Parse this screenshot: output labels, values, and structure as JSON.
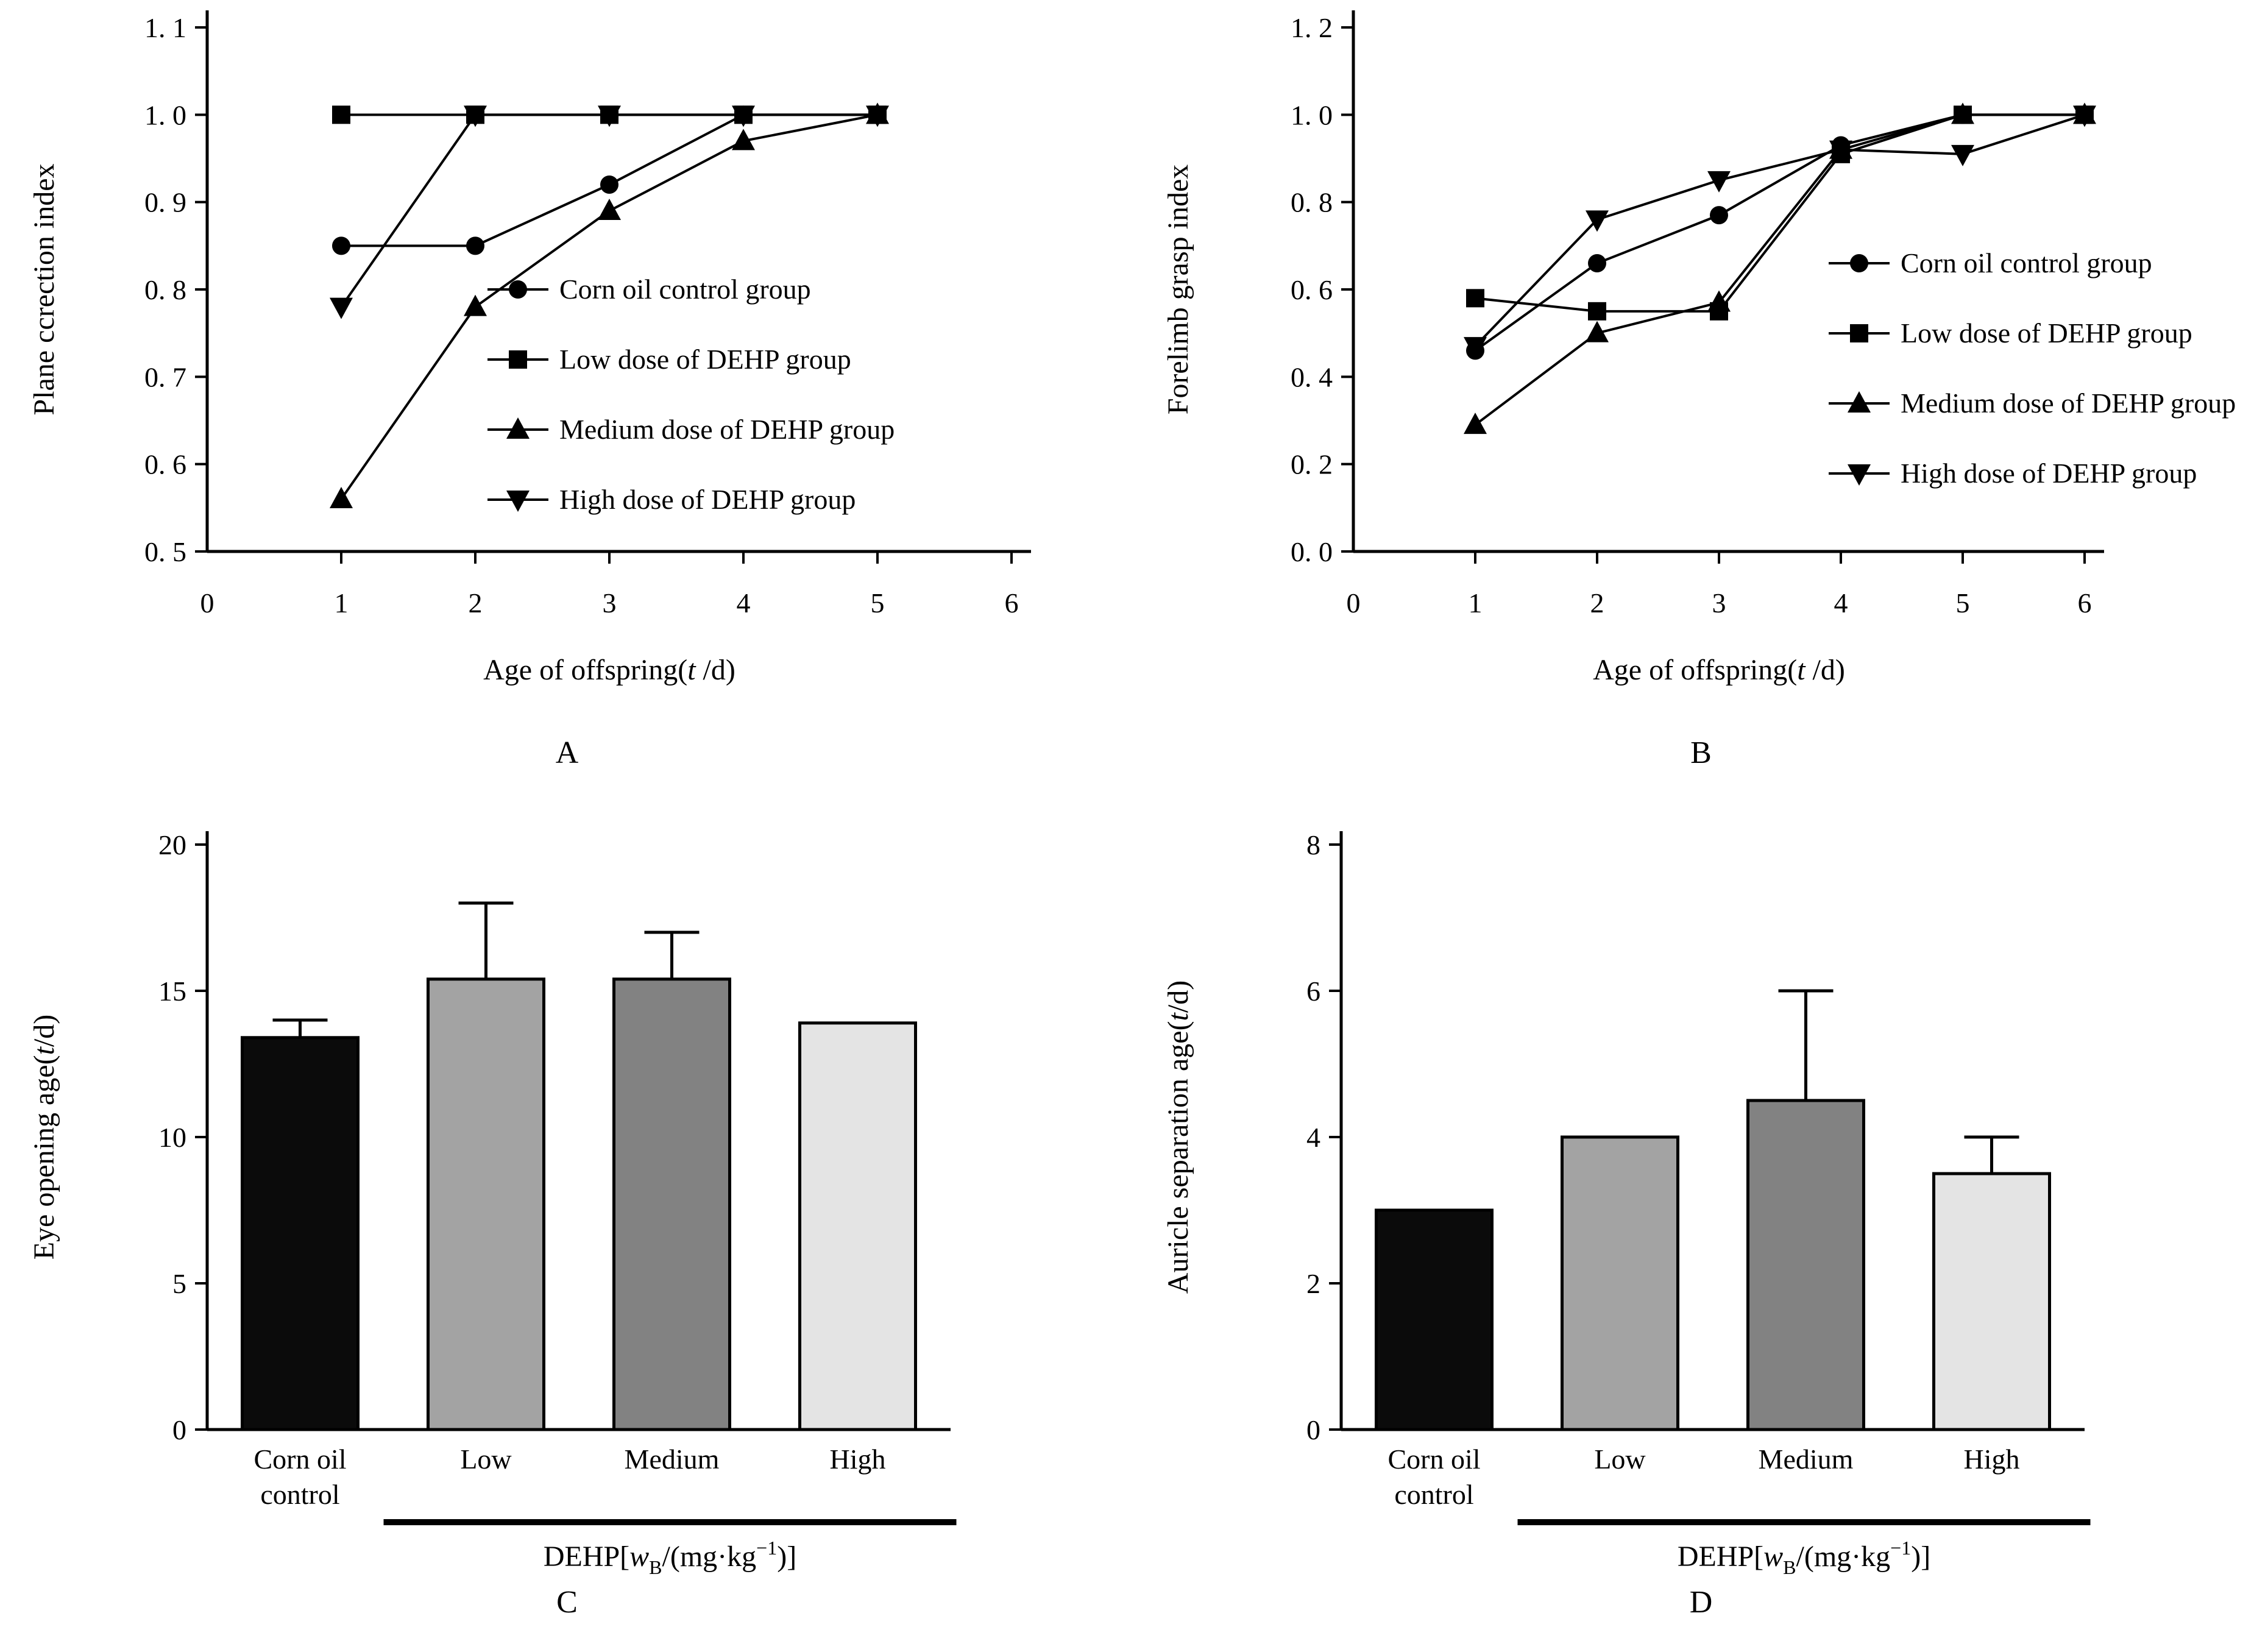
{
  "figure": {
    "background": "#ffffff",
    "ink": "#000000"
  },
  "panels": [
    {
      "id": "a",
      "letter": "A",
      "ylabel_segments": [
        {
          "t": "Plane ccrection index",
          "s": "n"
        }
      ],
      "xlabel_segments": [
        {
          "t": "Age of offspring(",
          "s": "n"
        },
        {
          "t": "t",
          "s": "i"
        },
        {
          "t": " /d)",
          "s": "n"
        }
      ],
      "chart_data": {
        "type": "line",
        "title": "",
        "xlabel": "Age of offspring(t/d)",
        "ylabel": "Plane ccrection index",
        "x": [
          1,
          2,
          3,
          4,
          5
        ],
        "xlim": [
          0,
          6
        ],
        "ylim": [
          0.5,
          1.1
        ],
        "xtick_labels": [
          "0",
          "1",
          "2",
          "3",
          "4",
          "5",
          "6"
        ],
        "ytick_labels": [
          "0. 5",
          "0. 6",
          "0. 7",
          "0. 8",
          "0. 9",
          "1. 0",
          "1. 1"
        ],
        "grid": false,
        "legend_position": "inside right",
        "series": [
          {
            "name": "Corn oil control group",
            "marker": "circle",
            "values": [
              0.85,
              0.85,
              0.92,
              1.0,
              1.0
            ]
          },
          {
            "name": "Low dose of DEHP group",
            "marker": "square",
            "values": [
              1.0,
              1.0,
              1.0,
              1.0,
              1.0
            ]
          },
          {
            "name": "Medium dose of DEHP group",
            "marker": "triangle-up",
            "values": [
              0.56,
              0.78,
              0.89,
              0.97,
              1.0
            ]
          },
          {
            "name": "High dose of DEHP group",
            "marker": "triangle-down",
            "values": [
              0.78,
              1.0,
              1.0,
              1.0,
              1.0
            ]
          }
        ]
      }
    },
    {
      "id": "b",
      "letter": "B",
      "ylabel_segments": [
        {
          "t": "Forelimb grasp index",
          "s": "n"
        }
      ],
      "xlabel_segments": [
        {
          "t": "Age of offspring(",
          "s": "n"
        },
        {
          "t": "t",
          "s": "i"
        },
        {
          "t": " /d)",
          "s": "n"
        }
      ],
      "chart_data": {
        "type": "line",
        "title": "",
        "xlabel": "Age of offspring(t/d)",
        "ylabel": "Forelimb grasp index",
        "x": [
          1,
          2,
          3,
          4,
          5,
          6
        ],
        "xlim": [
          0,
          6
        ],
        "ylim": [
          0.0,
          1.2
        ],
        "xtick_labels": [
          "0",
          "1",
          "2",
          "3",
          "4",
          "5",
          "6"
        ],
        "ytick_labels": [
          "0. 0",
          "0. 2",
          "0. 4",
          "0. 6",
          "0. 8",
          "1. 0",
          "1. 2"
        ],
        "grid": false,
        "legend_position": "inside right",
        "series": [
          {
            "name": "Corn oil control group",
            "marker": "circle",
            "values": [
              0.46,
              0.66,
              0.77,
              0.93,
              1.0,
              1.0
            ]
          },
          {
            "name": "Low dose of DEHP group",
            "marker": "square",
            "values": [
              0.58,
              0.55,
              0.55,
              0.91,
              1.0,
              1.0
            ]
          },
          {
            "name": "Medium dose of DEHP group",
            "marker": "triangle-up",
            "values": [
              0.29,
              0.5,
              0.57,
              0.92,
              1.0,
              1.0
            ]
          },
          {
            "name": "High dose of DEHP group",
            "marker": "triangle-down",
            "values": [
              0.47,
              0.76,
              0.85,
              0.92,
              0.91,
              1.0
            ]
          }
        ]
      }
    },
    {
      "id": "c",
      "letter": "C",
      "ylabel_segments": [
        {
          "t": "Eye opening age(",
          "s": "n"
        },
        {
          "t": "t",
          "s": "i"
        },
        {
          "t": "/d)",
          "s": "n"
        }
      ],
      "group_label_segments": [
        {
          "t": "DEHP[",
          "s": "n"
        },
        {
          "t": "w",
          "s": "i"
        },
        {
          "t": "B",
          "s": "sub"
        },
        {
          "t": "/(mg·kg",
          "s": "n"
        },
        {
          "t": "−1",
          "s": "sup"
        },
        {
          "t": ")]",
          "s": "n"
        }
      ],
      "chart_data": {
        "type": "bar",
        "title": "",
        "xlabel": "DEHP[wB/(mg·kg−1)]",
        "ylabel": "Eye opening age(t/d)",
        "categories": [
          "Corn oil control",
          "Low",
          "Medium",
          "High"
        ],
        "category_lines": [
          [
            "Corn oil",
            "control"
          ],
          [
            "Low"
          ],
          [
            "Medium"
          ],
          [
            "High"
          ]
        ],
        "values": [
          13.4,
          15.4,
          15.4,
          13.9
        ],
        "errors_plus": [
          0.6,
          2.6,
          1.6,
          0
        ],
        "bar_colors": [
          "#0b0b0b",
          "#a3a3a3",
          "#828282",
          "#e4e4e4"
        ],
        "ylim": [
          0,
          20
        ],
        "ytick_labels": [
          "0",
          "5",
          "10",
          "15",
          "20"
        ],
        "grid": false
      }
    },
    {
      "id": "d",
      "letter": "D",
      "ylabel_segments": [
        {
          "t": "Auricle separation age(",
          "s": "n"
        },
        {
          "t": "t",
          "s": "i"
        },
        {
          "t": "/d)",
          "s": "n"
        }
      ],
      "group_label_segments": [
        {
          "t": "DEHP[",
          "s": "n"
        },
        {
          "t": "w",
          "s": "i"
        },
        {
          "t": "B",
          "s": "sub"
        },
        {
          "t": "/(mg·kg",
          "s": "n"
        },
        {
          "t": "−1",
          "s": "sup"
        },
        {
          "t": ")]",
          "s": "n"
        }
      ],
      "chart_data": {
        "type": "bar",
        "title": "",
        "xlabel": "DEHP[wB/(mg·kg−1)]",
        "ylabel": "Auricle separation age(t/d)",
        "categories": [
          "Corn oil control",
          "Low",
          "Medium",
          "High"
        ],
        "category_lines": [
          [
            "Corn oil",
            "control"
          ],
          [
            "Low"
          ],
          [
            "Medium"
          ],
          [
            "High"
          ]
        ],
        "values": [
          3.0,
          4.0,
          4.5,
          3.5
        ],
        "errors_plus": [
          0,
          0,
          1.5,
          0.5
        ],
        "bar_colors": [
          "#0b0b0b",
          "#a3a3a3",
          "#828282",
          "#e4e4e4"
        ],
        "ylim": [
          0,
          8
        ],
        "ytick_labels": [
          "0",
          "2",
          "4",
          "6",
          "8"
        ],
        "grid": false
      }
    }
  ]
}
